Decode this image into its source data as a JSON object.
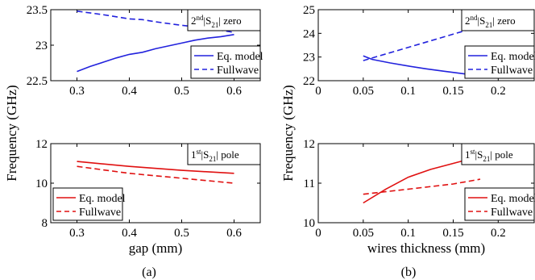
{
  "figure": {
    "subplot_labels": [
      "(a)",
      "(b)"
    ]
  },
  "chart_data": [
    {
      "type": "line",
      "panel": "a-top",
      "annotation": {
        "pre": "2",
        "sup": "nd",
        "mid": "|S",
        "sub": "21",
        "post": "| zero"
      },
      "xlim": [
        0.25,
        0.65
      ],
      "ylim": [
        22.5,
        23.5
      ],
      "xticks": [
        0.3,
        0.4,
        0.5,
        0.6
      ],
      "yticks": [
        22.5,
        23,
        23.5
      ],
      "xticklabels": [
        "0.3",
        "0.4",
        "0.5",
        "0.6"
      ],
      "yticklabels": [
        "22.5",
        "23",
        "23.5"
      ],
      "legend_placement": "right",
      "series": [
        {
          "name": "Eq. model",
          "color": "#2222dd",
          "dash": "solid",
          "x": [
            0.3,
            0.325,
            0.35,
            0.375,
            0.4,
            0.425,
            0.45,
            0.475,
            0.5,
            0.525,
            0.55,
            0.575,
            0.6
          ],
          "y": [
            22.63,
            22.7,
            22.76,
            22.82,
            22.87,
            22.9,
            22.95,
            22.99,
            23.03,
            23.07,
            23.1,
            23.12,
            23.15
          ]
        },
        {
          "name": "Fullwave",
          "color": "#2222dd",
          "dash": "dashed",
          "x": [
            0.3,
            0.35,
            0.4,
            0.425,
            0.45,
            0.5,
            0.55,
            0.6
          ],
          "y": [
            23.48,
            23.43,
            23.37,
            23.36,
            23.33,
            23.28,
            23.24,
            23.18
          ]
        }
      ]
    },
    {
      "type": "line",
      "panel": "a-bottom",
      "annotation": {
        "pre": "1",
        "sup": "st",
        "mid": "|S",
        "sub": "21",
        "post": "| pole"
      },
      "xlim": [
        0.25,
        0.65
      ],
      "ylim": [
        8,
        12
      ],
      "xticks": [
        0.3,
        0.4,
        0.5,
        0.6
      ],
      "yticks": [
        8,
        10,
        12
      ],
      "xticklabels": [
        "0.3",
        "0.4",
        "0.5",
        "0.6"
      ],
      "yticklabels": [
        "8",
        "10",
        "12"
      ],
      "xlabel": "gap (mm)",
      "legend_placement": "bottom-left",
      "series": [
        {
          "name": "Eq. model",
          "color": "#e01010",
          "dash": "solid",
          "x": [
            0.3,
            0.4,
            0.5,
            0.6
          ],
          "y": [
            11.1,
            10.85,
            10.65,
            10.5
          ]
        },
        {
          "name": "Fullwave",
          "color": "#e01010",
          "dash": "dashed",
          "x": [
            0.3,
            0.4,
            0.5,
            0.6
          ],
          "y": [
            10.85,
            10.5,
            10.25,
            10.0
          ]
        }
      ]
    },
    {
      "type": "line",
      "panel": "b-top",
      "annotation": {
        "pre": "2",
        "sup": "nd",
        "mid": "|S",
        "sub": "21",
        "post": "| zero"
      },
      "xlim": [
        0,
        0.24
      ],
      "ylim": [
        22,
        25
      ],
      "xticks": [
        0,
        0.05,
        0.1,
        0.15,
        0.2
      ],
      "yticks": [
        22,
        23,
        24,
        25
      ],
      "xticklabels": [
        "0",
        "0.05",
        "0.1",
        "0.15",
        "0.2"
      ],
      "yticklabels": [
        "22",
        "23",
        "24",
        "25"
      ],
      "legend_placement": "right",
      "series": [
        {
          "name": "Eq. model",
          "color": "#2222dd",
          "dash": "solid",
          "x": [
            0.05,
            0.06,
            0.08,
            0.1,
            0.12,
            0.14,
            0.16,
            0.18
          ],
          "y": [
            23.05,
            22.9,
            22.75,
            22.62,
            22.5,
            22.4,
            22.3,
            22.2
          ]
        },
        {
          "name": "Fullwave",
          "color": "#2222dd",
          "dash": "dashed",
          "x": [
            0.05,
            0.18
          ],
          "y": [
            22.85,
            24.3
          ]
        }
      ]
    },
    {
      "type": "line",
      "panel": "b-bottom",
      "annotation": {
        "pre": "1",
        "sup": "st",
        "mid": "|S",
        "sub": "21",
        "post": "| pole"
      },
      "xlim": [
        0,
        0.24
      ],
      "ylim": [
        10,
        12
      ],
      "xticks": [
        0,
        0.05,
        0.1,
        0.15,
        0.2
      ],
      "yticks": [
        10,
        11,
        12
      ],
      "xticklabels": [
        "0",
        "0.05",
        "0.1",
        "0.15",
        "0.2"
      ],
      "yticklabels": [
        "10",
        "11",
        "12"
      ],
      "xlabel": "wires thickness (mm)",
      "legend_placement": "bottom-right",
      "series": [
        {
          "name": "Eq. model",
          "color": "#e01010",
          "dash": "solid",
          "x": [
            0.05,
            0.075,
            0.1,
            0.125,
            0.15,
            0.175,
            0.18
          ],
          "y": [
            10.5,
            10.85,
            11.15,
            11.35,
            11.5,
            11.65,
            11.68
          ]
        },
        {
          "name": "Fullwave",
          "color": "#e01010",
          "dash": "dashed",
          "x": [
            0.05,
            0.1,
            0.15,
            0.18
          ],
          "y": [
            10.72,
            10.85,
            10.98,
            11.1
          ]
        }
      ]
    }
  ],
  "ylabels": {
    "a": "Frequency (GHz)",
    "b": "Frequency (GHz)"
  }
}
